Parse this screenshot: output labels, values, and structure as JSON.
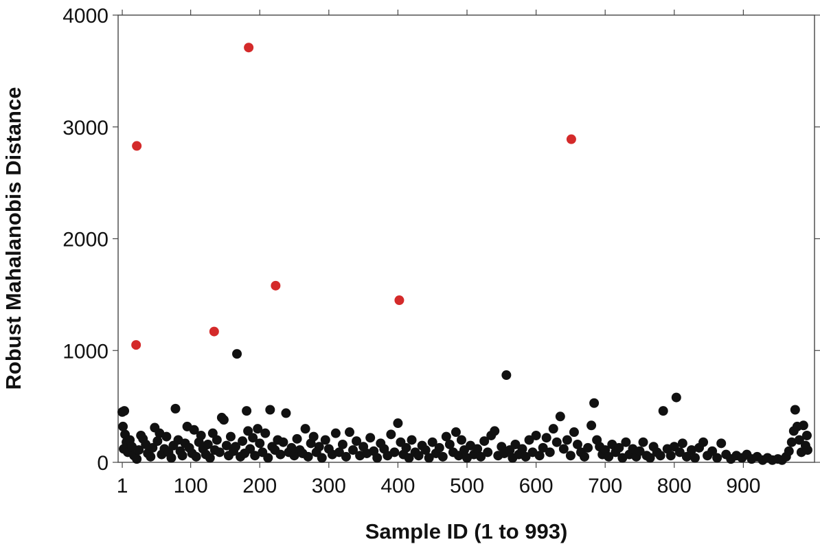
{
  "chart_data": {
    "type": "scatter",
    "xlabel": "Sample ID (1 to 993)",
    "ylabel": "Robust Mahalanobis Distance",
    "xlim": [
      -5,
      1003
    ],
    "ylim": [
      0,
      4000
    ],
    "x_ticks": [
      1,
      100,
      200,
      300,
      400,
      500,
      600,
      700,
      800,
      900
    ],
    "x_tick_labels": [
      "1",
      "100",
      "200",
      "300",
      "400",
      "500",
      "600",
      "700",
      "800",
      "900"
    ],
    "y_ticks": [
      0,
      1000,
      2000,
      3000,
      4000
    ],
    "y_tick_labels": [
      "0",
      "1000",
      "2000",
      "3000",
      "4000"
    ],
    "grid": false,
    "series": [
      {
        "color": "#111111",
        "points": [
          [
            1,
            450
          ],
          [
            4,
            460
          ],
          [
            2,
            320
          ],
          [
            5,
            250
          ],
          [
            7,
            180
          ],
          [
            3,
            120
          ],
          [
            9,
            90
          ],
          [
            12,
            200
          ],
          [
            15,
            140
          ],
          [
            18,
            60
          ],
          [
            22,
            30
          ],
          [
            25,
            110
          ],
          [
            28,
            240
          ],
          [
            31,
            210
          ],
          [
            35,
            160
          ],
          [
            38,
            80
          ],
          [
            42,
            50
          ],
          [
            45,
            130
          ],
          [
            48,
            310
          ],
          [
            52,
            190
          ],
          [
            55,
            260
          ],
          [
            58,
            70
          ],
          [
            62,
            120
          ],
          [
            65,
            230
          ],
          [
            68,
            90
          ],
          [
            72,
            40
          ],
          [
            75,
            150
          ],
          [
            78,
            480
          ],
          [
            82,
            200
          ],
          [
            85,
            100
          ],
          [
            88,
            60
          ],
          [
            92,
            170
          ],
          [
            95,
            320
          ],
          [
            98,
            130
          ],
          [
            102,
            80
          ],
          [
            105,
            290
          ],
          [
            108,
            50
          ],
          [
            112,
            180
          ],
          [
            115,
            240
          ],
          [
            118,
            120
          ],
          [
            122,
            70
          ],
          [
            125,
            160
          ],
          [
            128,
            40
          ],
          [
            132,
            260
          ],
          [
            135,
            110
          ],
          [
            138,
            200
          ],
          [
            142,
            90
          ],
          [
            145,
            400
          ],
          [
            148,
            380
          ],
          [
            152,
            150
          ],
          [
            155,
            60
          ],
          [
            158,
            230
          ],
          [
            162,
            100
          ],
          [
            165,
            140
          ],
          [
            167,
            970
          ],
          [
            172,
            50
          ],
          [
            175,
            190
          ],
          [
            178,
            80
          ],
          [
            181,
            460
          ],
          [
            183,
            280
          ],
          [
            186,
            120
          ],
          [
            190,
            220
          ],
          [
            193,
            60
          ],
          [
            197,
            300
          ],
          [
            200,
            170
          ],
          [
            204,
            90
          ],
          [
            208,
            260
          ],
          [
            212,
            40
          ],
          [
            215,
            470
          ],
          [
            218,
            140
          ],
          [
            222,
            110
          ],
          [
            226,
            200
          ],
          [
            230,
            70
          ],
          [
            234,
            180
          ],
          [
            238,
            440
          ],
          [
            242,
            90
          ],
          [
            246,
            130
          ],
          [
            250,
            60
          ],
          [
            254,
            210
          ],
          [
            258,
            110
          ],
          [
            262,
            80
          ],
          [
            266,
            300
          ],
          [
            270,
            50
          ],
          [
            274,
            170
          ],
          [
            278,
            230
          ],
          [
            282,
            90
          ],
          [
            286,
            140
          ],
          [
            290,
            40
          ],
          [
            295,
            200
          ],
          [
            300,
            120
          ],
          [
            305,
            70
          ],
          [
            310,
            260
          ],
          [
            315,
            90
          ],
          [
            320,
            160
          ],
          [
            325,
            50
          ],
          [
            330,
            270
          ],
          [
            335,
            110
          ],
          [
            340,
            190
          ],
          [
            345,
            60
          ],
          [
            350,
            140
          ],
          [
            355,
            80
          ],
          [
            360,
            220
          ],
          [
            365,
            100
          ],
          [
            370,
            40
          ],
          [
            375,
            170
          ],
          [
            380,
            120
          ],
          [
            385,
            60
          ],
          [
            390,
            250
          ],
          [
            395,
            90
          ],
          [
            400,
            350
          ],
          [
            404,
            180
          ],
          [
            408,
            70
          ],
          [
            412,
            130
          ],
          [
            416,
            40
          ],
          [
            420,
            200
          ],
          [
            425,
            90
          ],
          [
            430,
            60
          ],
          [
            435,
            150
          ],
          [
            440,
            110
          ],
          [
            445,
            40
          ],
          [
            450,
            180
          ],
          [
            455,
            80
          ],
          [
            460,
            130
          ],
          [
            465,
            50
          ],
          [
            470,
            230
          ],
          [
            475,
            160
          ],
          [
            480,
            90
          ],
          [
            484,
            270
          ],
          [
            488,
            60
          ],
          [
            492,
            200
          ],
          [
            496,
            110
          ],
          [
            500,
            40
          ],
          [
            505,
            150
          ],
          [
            510,
            70
          ],
          [
            515,
            120
          ],
          [
            520,
            50
          ],
          [
            525,
            190
          ],
          [
            530,
            90
          ],
          [
            535,
            240
          ],
          [
            540,
            280
          ],
          [
            545,
            60
          ],
          [
            550,
            140
          ],
          [
            554,
            80
          ],
          [
            557,
            780
          ],
          [
            562,
            110
          ],
          [
            566,
            40
          ],
          [
            570,
            160
          ],
          [
            575,
            70
          ],
          [
            580,
            120
          ],
          [
            585,
            50
          ],
          [
            590,
            200
          ],
          [
            595,
            90
          ],
          [
            600,
            240
          ],
          [
            605,
            60
          ],
          [
            610,
            130
          ],
          [
            615,
            220
          ],
          [
            620,
            90
          ],
          [
            625,
            300
          ],
          [
            630,
            180
          ],
          [
            635,
            410
          ],
          [
            640,
            120
          ],
          [
            645,
            200
          ],
          [
            650,
            60
          ],
          [
            655,
            270
          ],
          [
            660,
            160
          ],
          [
            665,
            90
          ],
          [
            670,
            50
          ],
          [
            675,
            130
          ],
          [
            680,
            330
          ],
          [
            684,
            530
          ],
          [
            688,
            200
          ],
          [
            692,
            140
          ],
          [
            696,
            70
          ],
          [
            700,
            110
          ],
          [
            705,
            50
          ],
          [
            710,
            160
          ],
          [
            715,
            90
          ],
          [
            720,
            130
          ],
          [
            725,
            40
          ],
          [
            730,
            180
          ],
          [
            735,
            70
          ],
          [
            740,
            120
          ],
          [
            745,
            50
          ],
          [
            750,
            100
          ],
          [
            755,
            180
          ],
          [
            760,
            60
          ],
          [
            765,
            40
          ],
          [
            770,
            140
          ],
          [
            775,
            90
          ],
          [
            780,
            60
          ],
          [
            784,
            460
          ],
          [
            790,
            120
          ],
          [
            795,
            60
          ],
          [
            800,
            140
          ],
          [
            803,
            580
          ],
          [
            808,
            90
          ],
          [
            812,
            170
          ],
          [
            818,
            50
          ],
          [
            825,
            110
          ],
          [
            830,
            40
          ],
          [
            836,
            130
          ],
          [
            842,
            180
          ],
          [
            848,
            60
          ],
          [
            855,
            100
          ],
          [
            862,
            40
          ],
          [
            868,
            170
          ],
          [
            875,
            70
          ],
          [
            882,
            30
          ],
          [
            890,
            60
          ],
          [
            898,
            40
          ],
          [
            905,
            70
          ],
          [
            912,
            30
          ],
          [
            920,
            50
          ],
          [
            928,
            20
          ],
          [
            935,
            40
          ],
          [
            942,
            20
          ],
          [
            950,
            30
          ],
          [
            956,
            20
          ],
          [
            962,
            50
          ],
          [
            966,
            100
          ],
          [
            970,
            180
          ],
          [
            973,
            280
          ],
          [
            975,
            470
          ],
          [
            978,
            320
          ],
          [
            981,
            200
          ],
          [
            984,
            90
          ],
          [
            987,
            330
          ],
          [
            990,
            150
          ],
          [
            992,
            240
          ],
          [
            993,
            110
          ]
        ]
      },
      {
        "color": "#d42a2a",
        "points": [
          [
            21,
            1050
          ],
          [
            22,
            2830
          ],
          [
            134,
            1170
          ],
          [
            184,
            3710
          ],
          [
            223,
            1580
          ],
          [
            402,
            1450
          ],
          [
            651,
            2890
          ]
        ]
      }
    ]
  }
}
